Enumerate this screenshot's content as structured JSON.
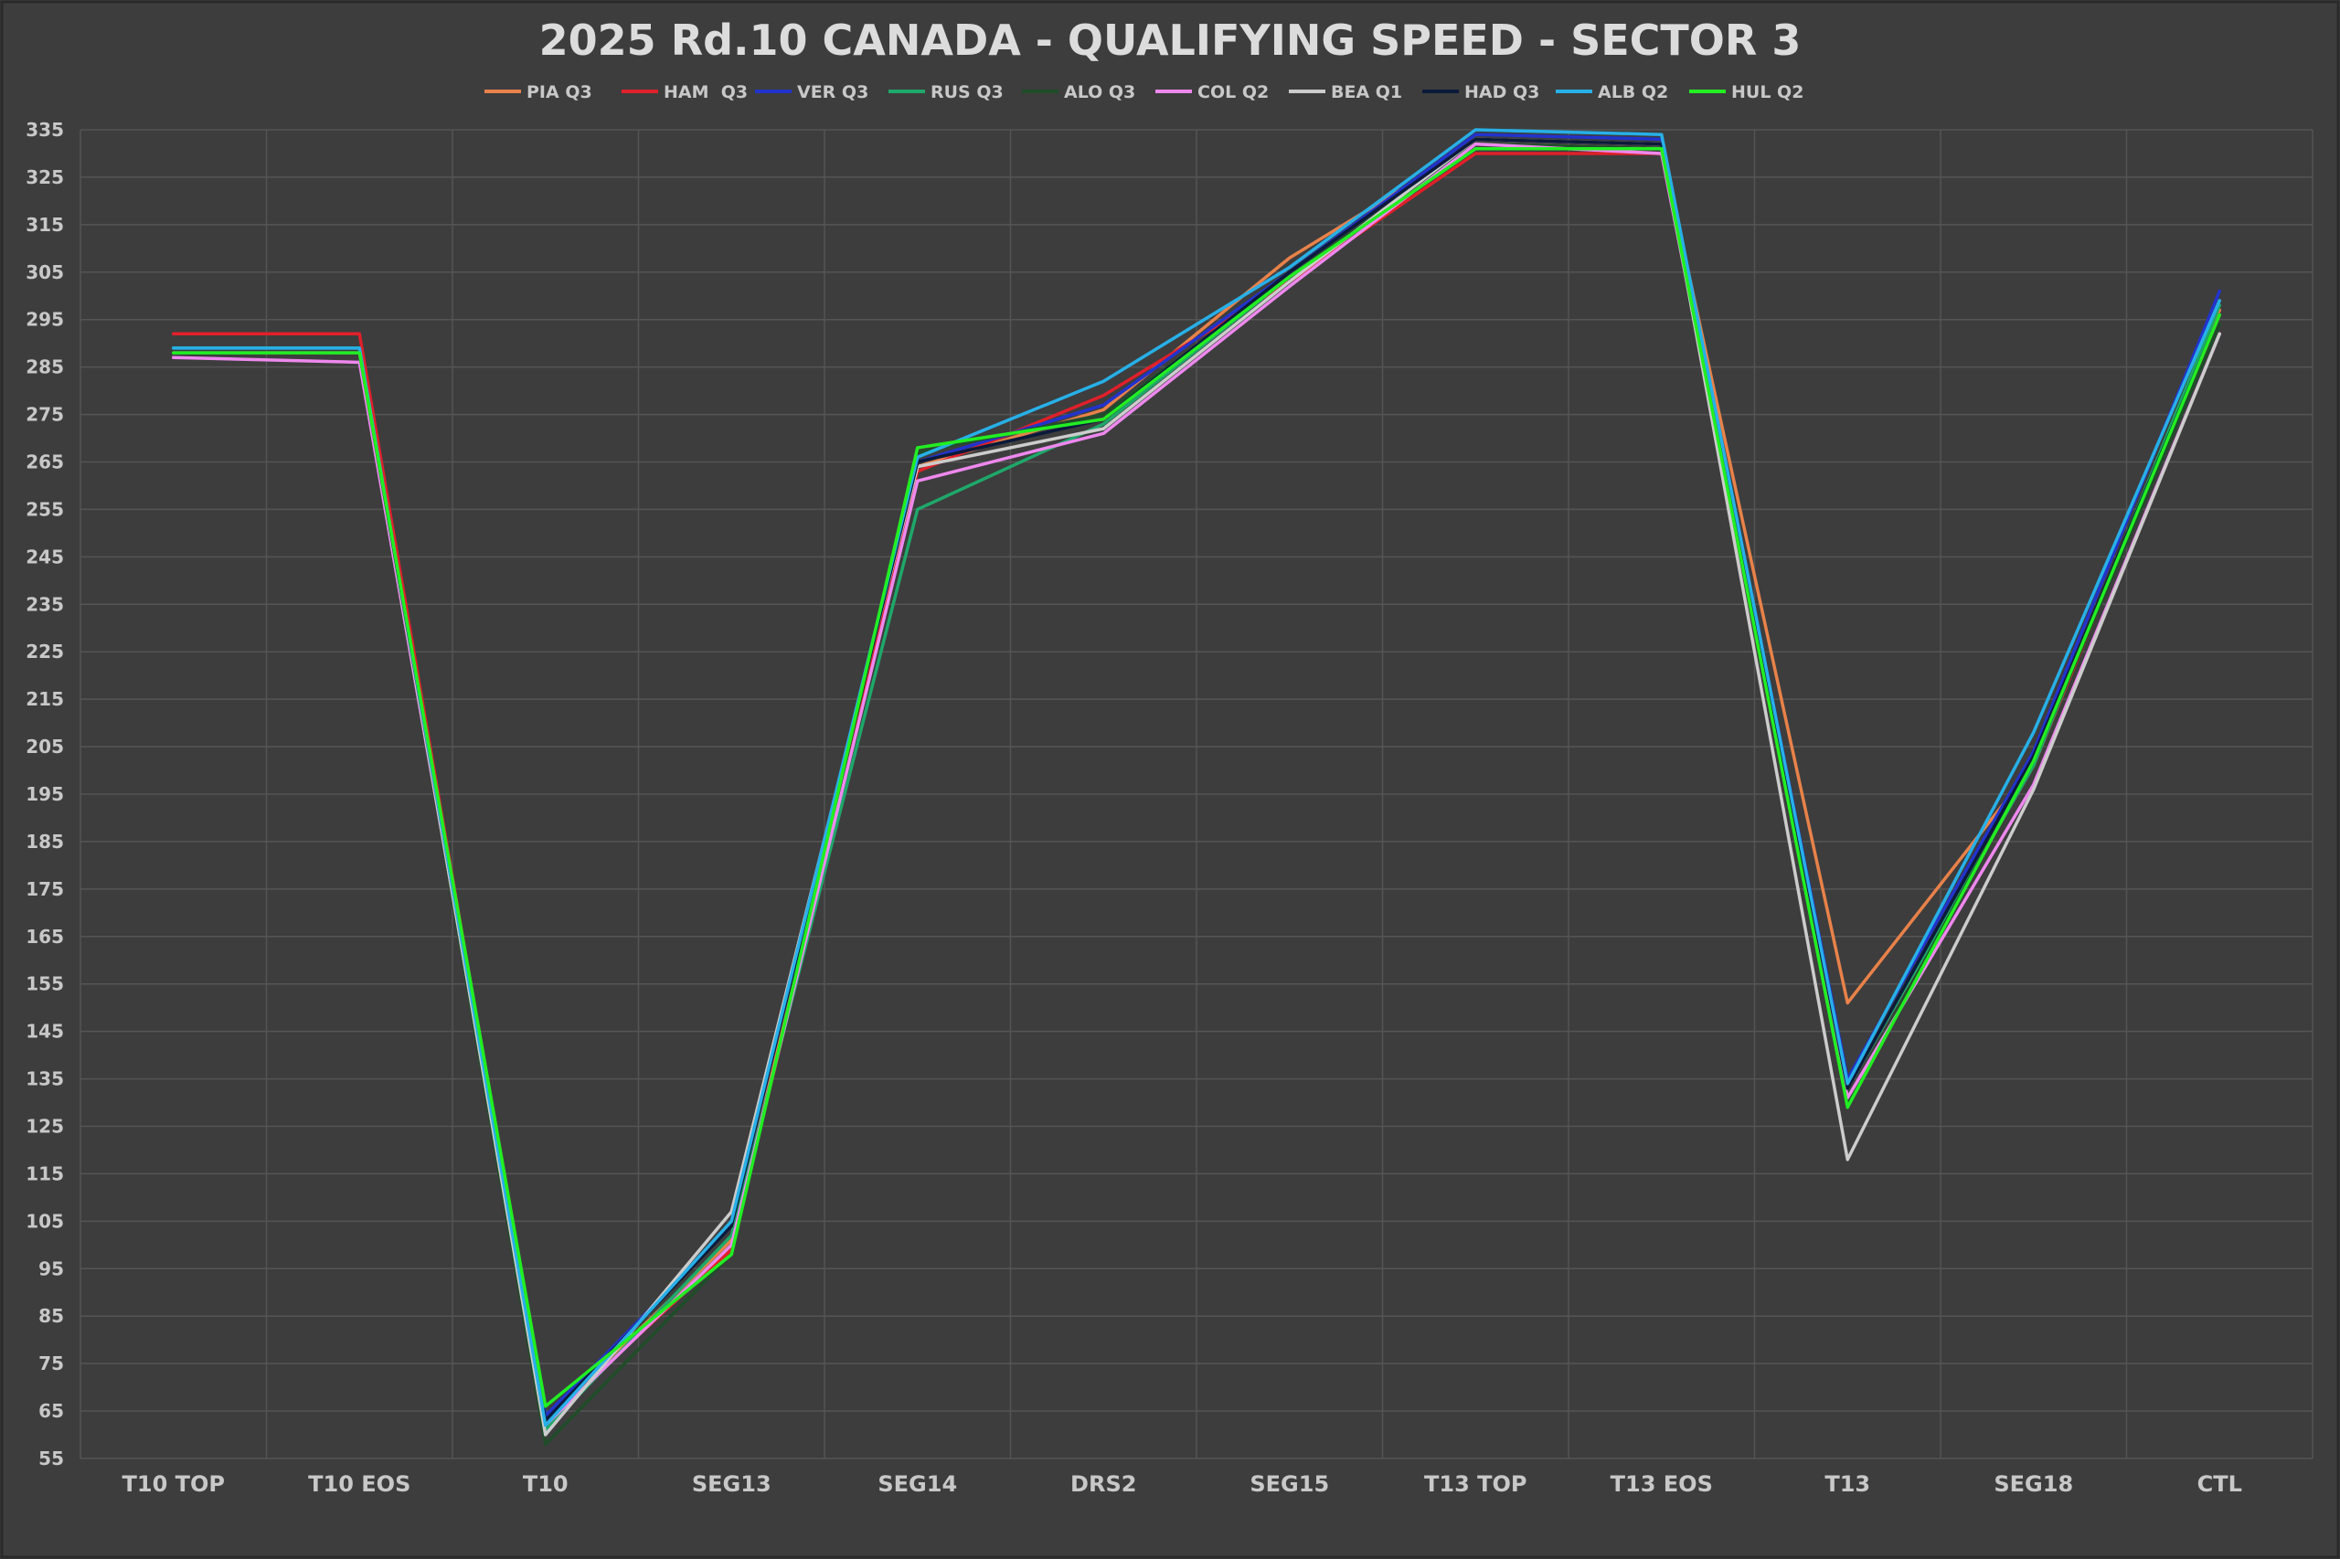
{
  "chart_data": {
    "type": "line",
    "title": "2025 Rd.10 CANADA - QUALIFYING SPEED - SECTOR 3",
    "xlabel": "",
    "ylabel": "",
    "categories": [
      "T10 TOP",
      "T10 EOS",
      "T10",
      "SEG13",
      "SEG14",
      "DRS2",
      "SEG15",
      "T13 TOP",
      "T13 EOS",
      "T13",
      "SEG18",
      "CTL"
    ],
    "yticks": [
      "335",
      "325",
      "315",
      "305",
      "295",
      "285",
      "275",
      "265",
      "255",
      "245",
      "235",
      "225",
      "215",
      "205",
      "195",
      "185",
      "175",
      "165",
      "155",
      "145",
      "135",
      "125",
      "115",
      "105",
      "95",
      "85",
      "75",
      "65",
      "55"
    ],
    "ylim": [
      55,
      335
    ],
    "grid": true,
    "legend_position": "top-center",
    "series": [
      {
        "name": "PIA Q3",
        "color": "#e8824a",
        "values": [
          288,
          288,
          63,
          101,
          264,
          276,
          308,
          332,
          331,
          151,
          201,
          297
        ]
      },
      {
        "name": "HAM  Q3",
        "color": "#e0202a",
        "values": [
          292,
          292,
          63,
          99,
          263,
          279,
          303,
          330,
          330,
          133,
          201,
          296
        ]
      },
      {
        "name": "VER Q3",
        "color": "#2233cc",
        "values": [
          288,
          288,
          64,
          104,
          265,
          277,
          305,
          334,
          333,
          135,
          204,
          301
        ]
      },
      {
        "name": "RUS Q3",
        "color": "#1ea86a",
        "values": [
          289,
          289,
          61,
          102,
          255,
          273,
          304,
          332,
          331,
          133,
          201,
          298
        ]
      },
      {
        "name": "ALO Q3",
        "color": "#1f4d2a",
        "values": [
          288,
          288,
          58,
          98,
          267,
          275,
          304,
          332,
          331,
          130,
          202,
          294
        ]
      },
      {
        "name": "COL Q2",
        "color": "#ee88ee",
        "values": [
          287,
          286,
          62,
          100,
          261,
          271,
          302,
          332,
          330,
          131,
          197,
          292
        ]
      },
      {
        "name": "BEA Q1",
        "color": "#cccccc",
        "values": [
          288,
          288,
          60,
          107,
          264,
          272,
          303,
          333,
          332,
          118,
          196,
          292
        ]
      },
      {
        "name": "HAD Q3",
        "color": "#0c1a3a",
        "values": [
          288,
          288,
          63,
          104,
          265,
          274,
          305,
          333,
          332,
          133,
          203,
          296
        ]
      },
      {
        "name": "ALB Q2",
        "color": "#27b0e8",
        "values": [
          289,
          289,
          62,
          105,
          266,
          282,
          306,
          335,
          334,
          134,
          208,
          299
        ]
      },
      {
        "name": "HUL Q2",
        "color": "#22ee22",
        "values": [
          288,
          288,
          66,
          98,
          268,
          274,
          304,
          331,
          331,
          129,
          202,
          296
        ]
      }
    ]
  }
}
